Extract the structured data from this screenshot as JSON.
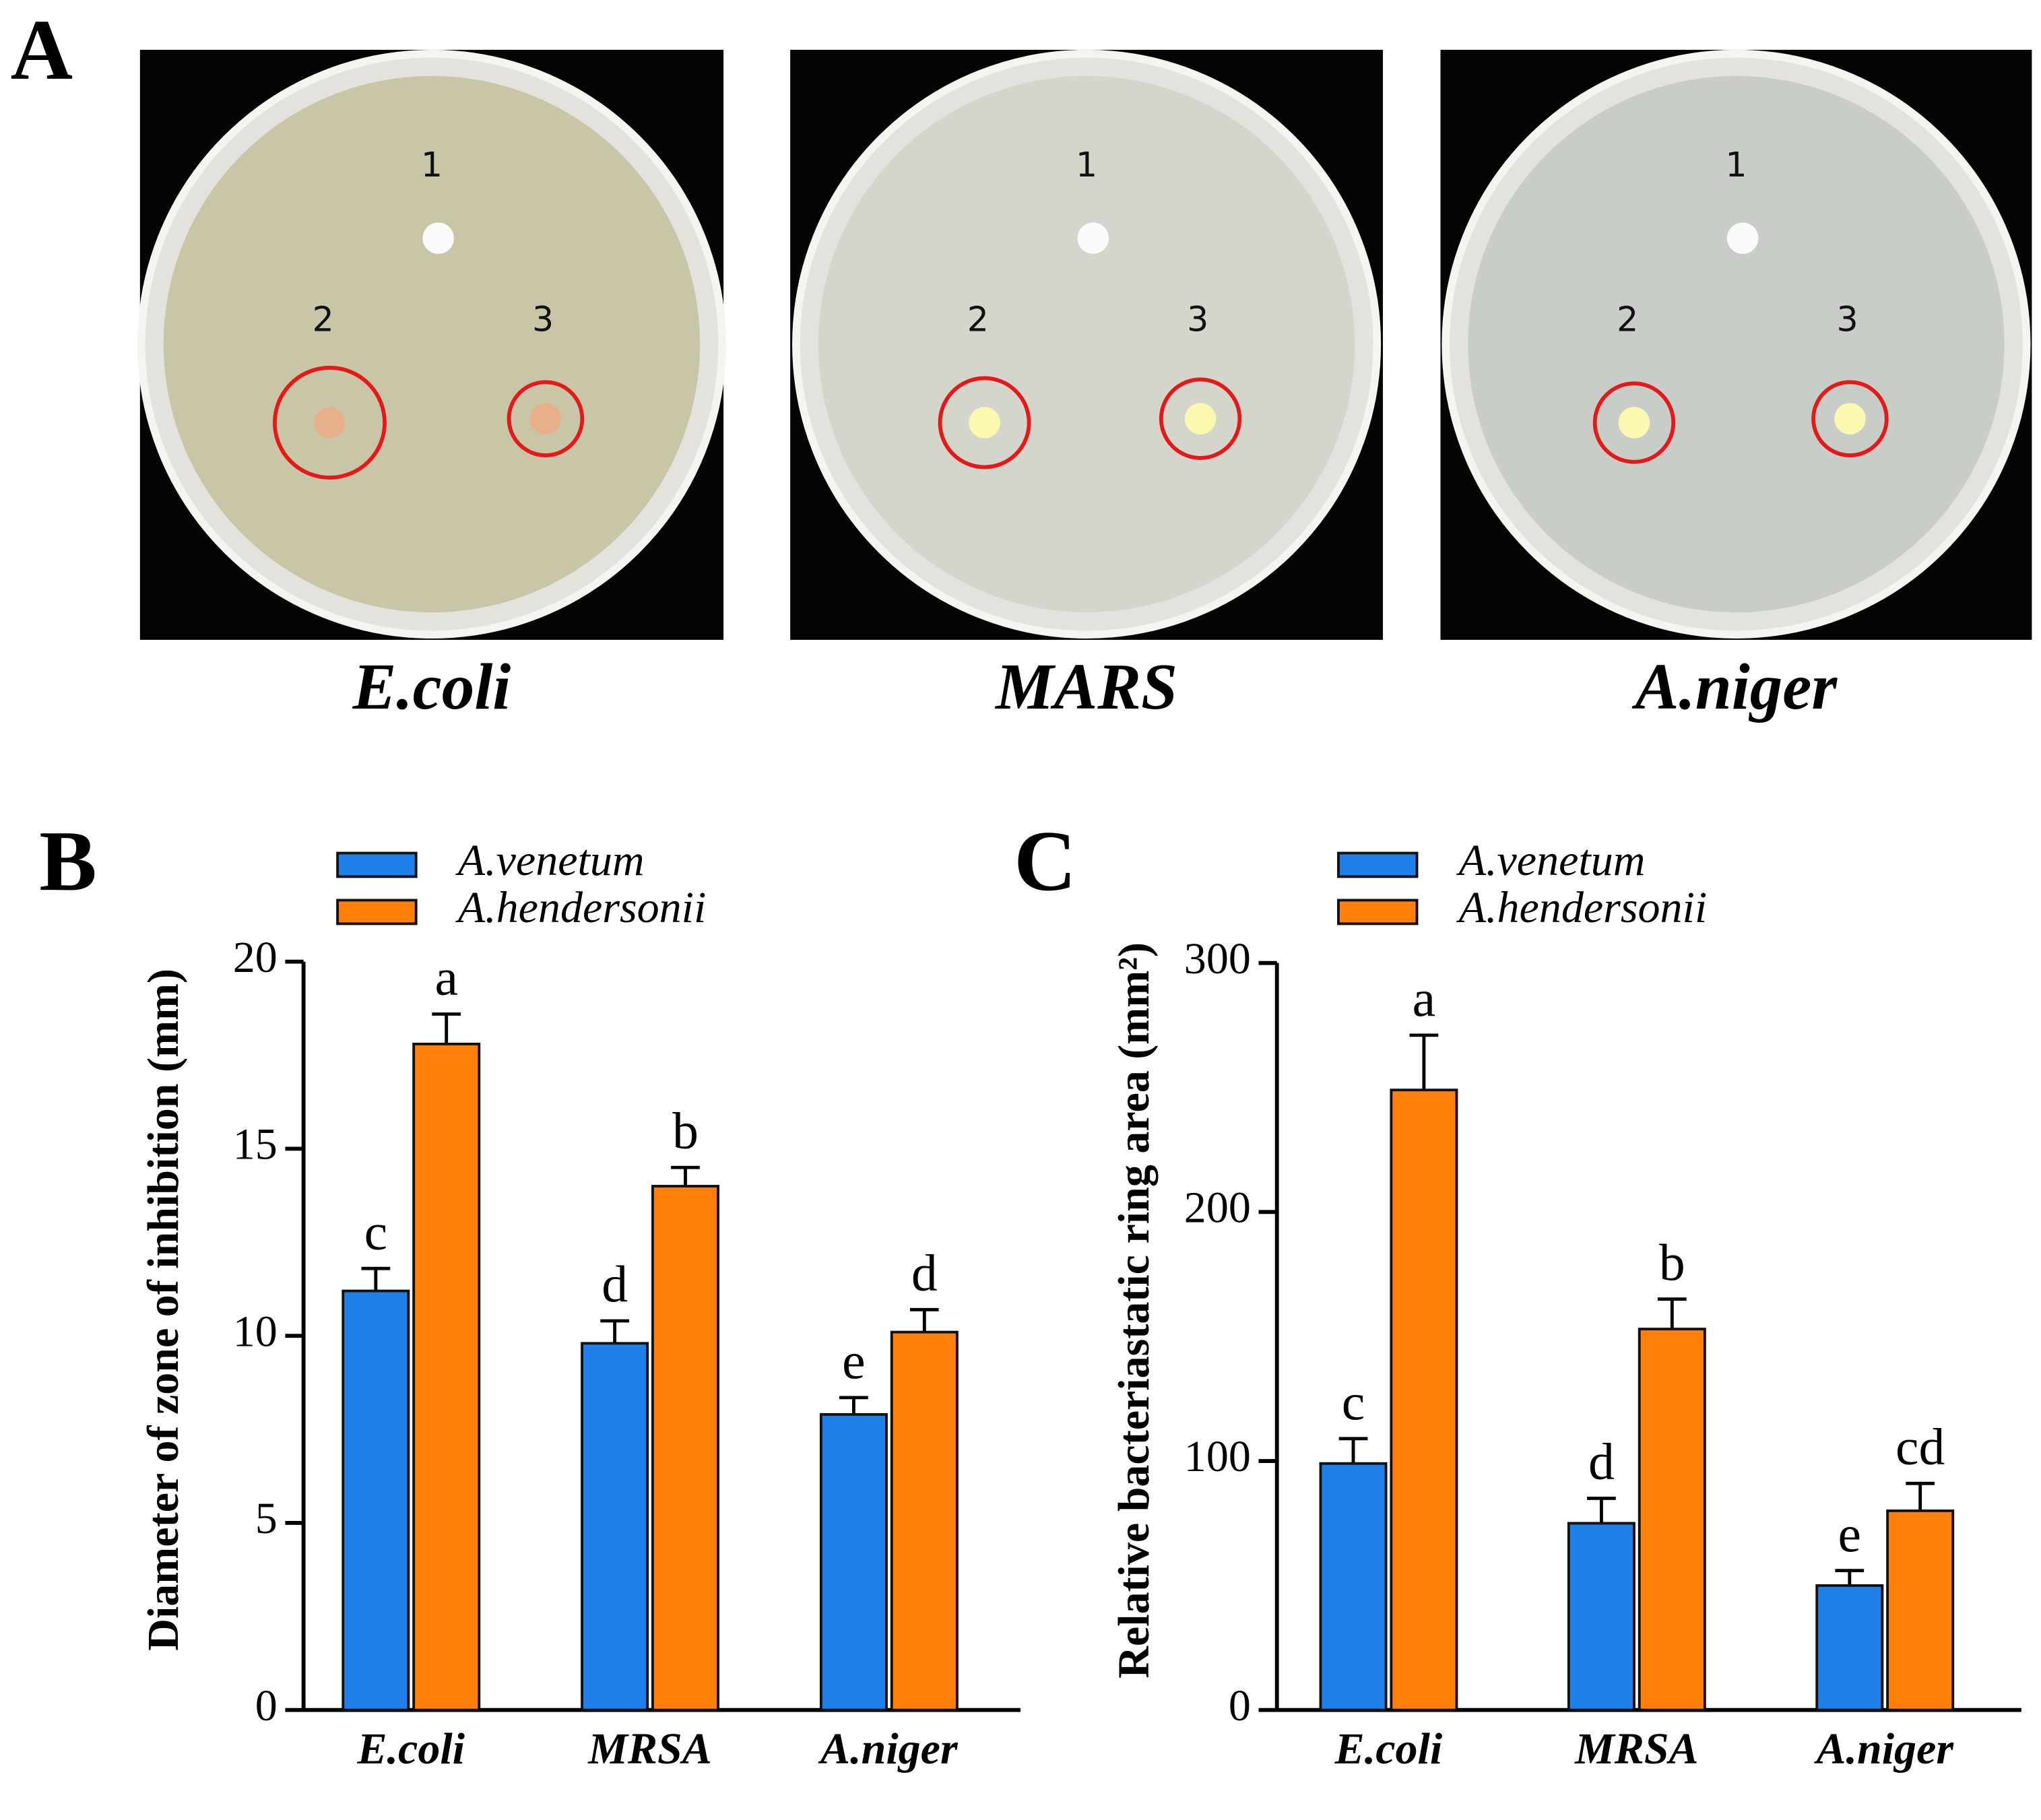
{
  "figure": {
    "panels": [
      "A",
      "B",
      "C"
    ],
    "plates": [
      {
        "caption": "E.coli",
        "spots": [
          "1",
          "2",
          "3"
        ]
      },
      {
        "caption": "MARS",
        "spots": [
          "1",
          "2",
          "3"
        ]
      },
      {
        "caption": "A.niger",
        "spots": [
          "1",
          "2",
          "3"
        ]
      }
    ]
  },
  "chart_data": [
    {
      "type": "bar",
      "y_label": "Diameter of zone of inhibition (mm)",
      "categories": [
        "E.coli",
        "MRSA",
        "A.niger"
      ],
      "series": [
        {
          "name": "A.venetum",
          "color": "#1f80ea",
          "values": [
            11.2,
            9.8,
            7.9
          ],
          "errors": [
            0.6,
            0.6,
            0.45
          ],
          "letters": [
            "c",
            "d",
            "e"
          ]
        },
        {
          "name": "A.hendersonii",
          "color": "#ff7f0a",
          "values": [
            17.8,
            14.0,
            10.1
          ],
          "errors": [
            0.8,
            0.5,
            0.6
          ],
          "letters": [
            "a",
            "b",
            "d"
          ]
        }
      ],
      "ylim": [
        0,
        20
      ],
      "yticks": [
        0,
        5,
        10,
        15,
        20
      ]
    },
    {
      "type": "bar",
      "y_label": "Relative bacteriastatic ring area (mm²)",
      "categories": [
        "E.coli",
        "MRSA",
        "A.niger"
      ],
      "series": [
        {
          "name": "A.venetum",
          "color": "#1f80ea",
          "values": [
            99,
            75,
            50
          ],
          "errors": [
            10,
            10,
            6
          ],
          "letters": [
            "c",
            "d",
            "e"
          ]
        },
        {
          "name": "A.hendersonii",
          "color": "#ff7f0a",
          "values": [
            249,
            153,
            80
          ],
          "errors": [
            22,
            12,
            11
          ],
          "letters": [
            "a",
            "b",
            "cd"
          ]
        }
      ],
      "ylim": [
        0,
        300
      ],
      "yticks": [
        0,
        100,
        200,
        300
      ]
    }
  ]
}
